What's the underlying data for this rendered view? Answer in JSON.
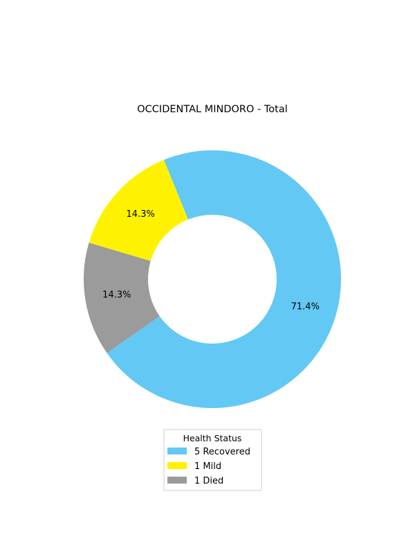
{
  "chart_data": {
    "type": "pie",
    "title": "OCCIDENTAL MINDORO - Total",
    "legend_title": "Health Status",
    "legend_placement": "bottom-center",
    "slices": [
      {
        "name": "Recovered",
        "value": 5,
        "legend_label": "5  Recovered",
        "percent_label": "71.4%",
        "color": "#63c8f4"
      },
      {
        "name": "Mild",
        "value": 1,
        "legend_label": "1  Mild",
        "percent_label": "14.3%",
        "color": "#fff200"
      },
      {
        "name": "Died",
        "value": 1,
        "legend_label": "1  Died",
        "percent_label": "14.3%",
        "color": "#9b9b9b"
      }
    ]
  }
}
